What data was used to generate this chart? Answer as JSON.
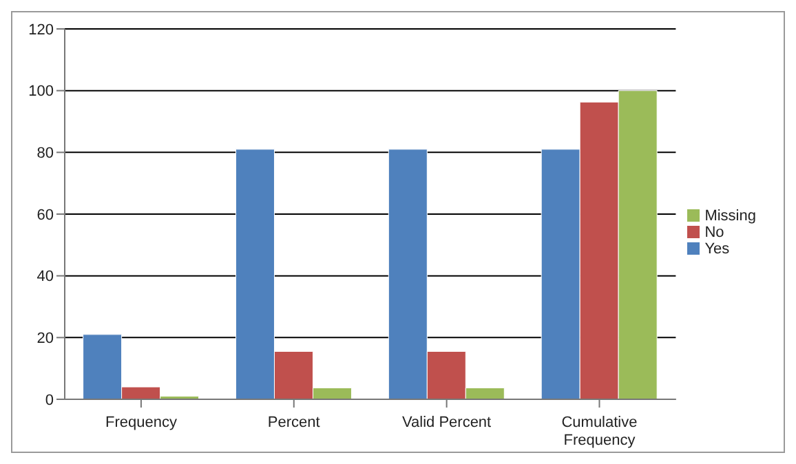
{
  "chart_data": {
    "type": "bar",
    "categories": [
      "Frequency",
      "Percent",
      "Valid Percent",
      "Cumulative Frequency"
    ],
    "series": [
      {
        "name": "Yes",
        "color": "#4f81bd",
        "values": [
          21,
          81,
          81,
          81
        ]
      },
      {
        "name": "No",
        "color": "#c0504d",
        "values": [
          4,
          15.5,
          15.5,
          96.3
        ]
      },
      {
        "name": "Missing",
        "color": "#9bbb59",
        "values": [
          1,
          3.7,
          3.7,
          100
        ]
      }
    ],
    "ylim": [
      0,
      120
    ],
    "yticks": [
      0,
      20,
      40,
      60,
      80,
      100,
      120
    ],
    "grid": "y",
    "legend": "right"
  }
}
